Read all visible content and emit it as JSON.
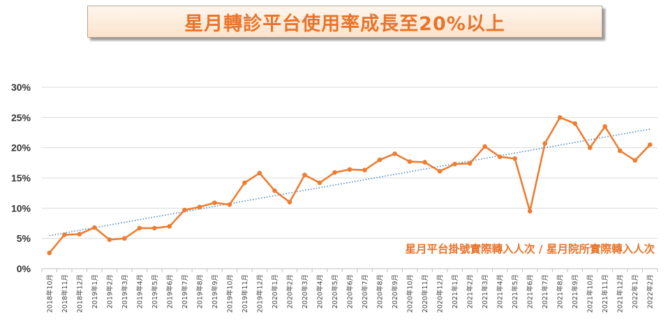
{
  "title": "星月轉診平台使用率成長至20%以上",
  "colors": {
    "series": "#ED7D31",
    "trend": "#4A86C8",
    "title_text": "#e8742a",
    "grid": "#d9d9d9"
  },
  "chart_data": {
    "type": "line",
    "title": "星月轉診平台使用率成長至20%以上",
    "annotation": "星月平台掛號實際轉入人次 / 星月院所實際轉入人次",
    "ylim": [
      0,
      0.3
    ],
    "yticks": [
      "0%",
      "5%",
      "10%",
      "15%",
      "20%",
      "25%",
      "30%"
    ],
    "grid": "horizontal",
    "trendline": "linear",
    "categories": [
      "2018年10月",
      "2018年11月",
      "2018年12月",
      "2019年1月",
      "2019年2月",
      "2019年3月",
      "2019年4月",
      "2019年5月",
      "2019年6月",
      "2019年7月",
      "2019年8月",
      "2019年9月",
      "2019年10月",
      "2019年11月",
      "2019年12月",
      "2020年1月",
      "2020年2月",
      "2020年3月",
      "2020年4月",
      "2020年5月",
      "2020年6月",
      "2020年7月",
      "2020年8月",
      "2020年9月",
      "2020年10月",
      "2020年11月",
      "2020年12月",
      "2021年1月",
      "2021年2月",
      "2021年3月",
      "2021年4月",
      "2021年5月",
      "2021年6月",
      "2021年7月",
      "2021年8月",
      "2021年9月",
      "2021年10月",
      "2021年11月",
      "2021年12月",
      "2022年1月",
      "2022年2月"
    ],
    "series": [
      {
        "values": [
          0.026,
          0.056,
          0.057,
          0.068,
          0.048,
          0.05,
          0.067,
          0.067,
          0.07,
          0.097,
          0.102,
          0.109,
          0.106,
          0.142,
          0.158,
          0.129,
          0.11,
          0.155,
          0.142,
          0.159,
          0.164,
          0.163,
          0.18,
          0.19,
          0.177,
          0.176,
          0.161,
          0.173,
          0.174,
          0.202,
          0.185,
          0.182,
          0.095,
          0.207,
          0.25,
          0.24,
          0.2,
          0.235,
          0.195,
          0.179,
          0.205
        ]
      }
    ]
  }
}
